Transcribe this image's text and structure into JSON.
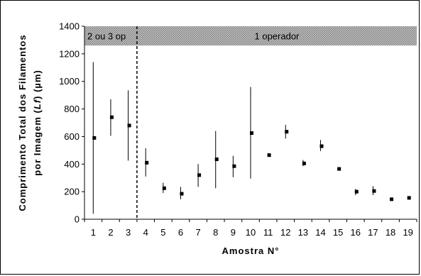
{
  "chart_data": {
    "type": "scatter",
    "xlabel": "Amostra N°",
    "ylabel_line1": "Comprimento Total dos Filamentos",
    "ylabel_line2_prefix": "por Imagem (",
    "ylabel_line2_italic": "Lf",
    "ylabel_line2_suffix": ") (µm)",
    "ylim": [
      0,
      1400
    ],
    "yticks": [
      0,
      200,
      400,
      600,
      800,
      1000,
      1200,
      1400
    ],
    "xlim": [
      0.5,
      19.5
    ],
    "xticks": [
      1,
      2,
      3,
      4,
      5,
      6,
      7,
      8,
      9,
      10,
      11,
      12,
      13,
      14,
      15,
      16,
      17,
      18,
      19
    ],
    "grid": false,
    "legend": "none",
    "points": [
      {
        "x": 1,
        "y": 590,
        "low": 40,
        "high": 1140
      },
      {
        "x": 2,
        "y": 740,
        "low": 605,
        "high": 870
      },
      {
        "x": 3,
        "y": 680,
        "low": 425,
        "high": 935
      },
      {
        "x": 4,
        "y": 410,
        "low": 310,
        "high": 515
      },
      {
        "x": 5,
        "y": 225,
        "low": 190,
        "high": 265
      },
      {
        "x": 6,
        "y": 185,
        "low": 145,
        "high": 235
      },
      {
        "x": 7,
        "y": 320,
        "low": 235,
        "high": 400
      },
      {
        "x": 8,
        "y": 435,
        "low": 225,
        "high": 640
      },
      {
        "x": 9,
        "y": 385,
        "low": 305,
        "high": 460
      },
      {
        "x": 10,
        "y": 625,
        "low": 295,
        "high": 960
      },
      {
        "x": 11,
        "y": 465,
        "low": 455,
        "high": 480
      },
      {
        "x": 12,
        "y": 635,
        "low": 585,
        "high": 685
      },
      {
        "x": 13,
        "y": 405,
        "low": 385,
        "high": 430
      },
      {
        "x": 14,
        "y": 530,
        "low": 495,
        "high": 575
      },
      {
        "x": 15,
        "y": 365,
        "low": 360,
        "high": 372
      },
      {
        "x": 16,
        "y": 200,
        "low": 175,
        "high": 220
      },
      {
        "x": 17,
        "y": 205,
        "low": 175,
        "high": 240
      },
      {
        "x": 18,
        "y": 145,
        "low": 138,
        "high": 152
      },
      {
        "x": 19,
        "y": 155,
        "low": 148,
        "high": 162
      }
    ],
    "band": {
      "y_low": 1260,
      "y_high": 1400,
      "color": "#b0b0b0",
      "divider_x": 3.5,
      "left_label": "2 ou 3 op",
      "right_label": "1 operador"
    },
    "colors": {
      "marker": "#000000",
      "errorbar": "#000000"
    }
  }
}
